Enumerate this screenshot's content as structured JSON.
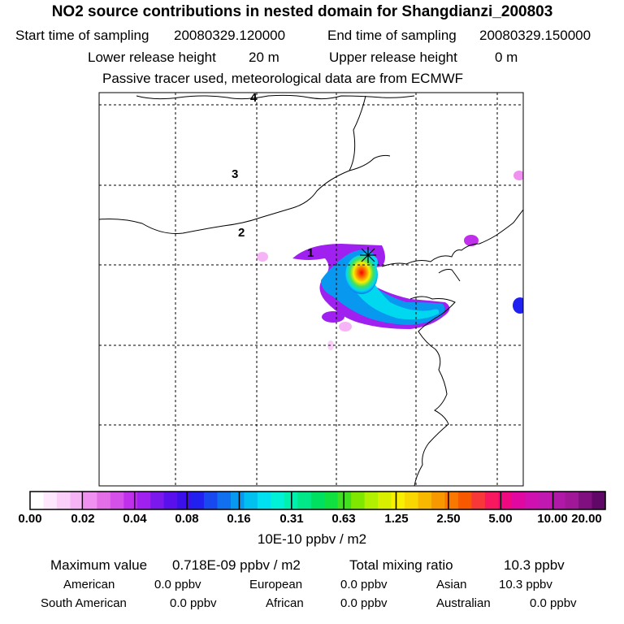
{
  "header": {
    "title": "NO2 source contributions in nested domain for Shangdianzi_200803",
    "start_label": "Start time of sampling",
    "start_value": "20080329.120000",
    "end_label": "End time of sampling",
    "end_value": "20080329.150000",
    "lower_label": "Lower release height",
    "lower_value": "20 m",
    "upper_label": "Upper release height",
    "upper_value": "0 m",
    "note": "Passive tracer used, meteorological data are from ECMWF"
  },
  "map": {
    "lat_labels": [
      "1",
      "2",
      "3",
      "4"
    ]
  },
  "colorbar": {
    "tick_labels": [
      "0.00",
      "0.02",
      "0.04",
      "0.08",
      "0.16",
      "0.31",
      "0.63",
      "1.25",
      "2.50",
      "5.00",
      "10.00",
      "20.00"
    ],
    "unit": "10E-10 ppbv / m2",
    "colors": [
      "#ffffff",
      "#fde8fd",
      "#fad0fa",
      "#f6b4f6",
      "#f090f0",
      "#e46ee8",
      "#d450e8",
      "#c030ec",
      "#a020f0",
      "#7a18ee",
      "#5a10ec",
      "#3c10ea",
      "#2020f0",
      "#1848f0",
      "#1070f0",
      "#0898f0",
      "#00c0f0",
      "#00e0f0",
      "#00f0d8",
      "#00f0b0",
      "#00e888",
      "#00e060",
      "#10e040",
      "#40e020",
      "#80e800",
      "#b0f000",
      "#d8f000",
      "#f8f000",
      "#f8d800",
      "#f8b800",
      "#f89800",
      "#f87800",
      "#f85800",
      "#f83838",
      "#f81860",
      "#f00880",
      "#e008a0",
      "#d010b0",
      "#c018b0",
      "#b018a8",
      "#a01898",
      "#801080",
      "#600868"
    ]
  },
  "stats": {
    "max_label": "Maximum value",
    "max_value": "0.718E-09 ppbv / m2",
    "total_label": "Total mixing ratio",
    "total_value": "10.3 ppbv"
  },
  "sources": [
    {
      "name": "American",
      "value": "0.0 ppbv"
    },
    {
      "name": "European",
      "value": "0.0 ppbv"
    },
    {
      "name": "Asian",
      "value": "10.3 ppbv"
    },
    {
      "name": "South American",
      "value": "0.0 ppbv"
    },
    {
      "name": "African",
      "value": "0.0 ppbv"
    },
    {
      "name": "Australian",
      "value": "0.0 ppbv"
    }
  ]
}
